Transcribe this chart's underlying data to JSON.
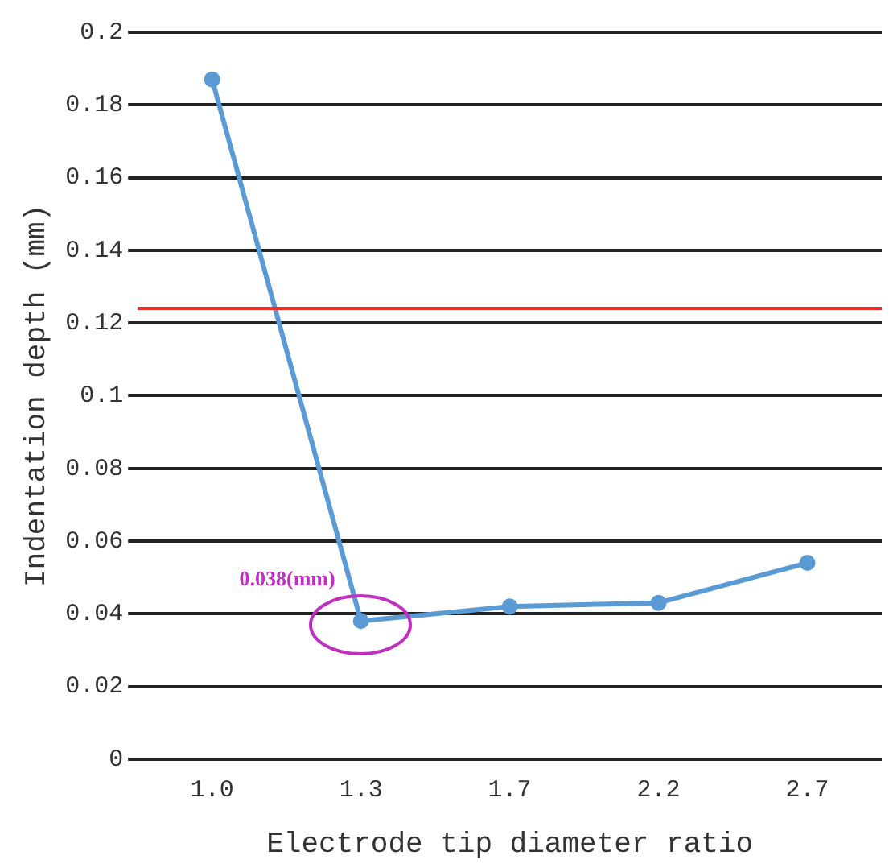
{
  "chart_data": {
    "type": "line",
    "xlabel": "Electrode tip diameter ratio",
    "ylabel": "Indentation depth (mm)",
    "categories": [
      "1.0",
      "1.3",
      "1.7",
      "2.2",
      "2.7"
    ],
    "series": [
      {
        "color": "#5b9bd5",
        "values": [
          0.187,
          0.038,
          0.042,
          0.043,
          0.054
        ]
      }
    ],
    "ylim": [
      0,
      0.2
    ],
    "yticks": [
      0,
      0.02,
      0.04,
      0.06,
      0.08,
      0.1,
      0.12,
      0.14,
      0.16,
      0.18,
      0.2
    ],
    "grid": "y",
    "marker": "circle",
    "line_style": "solid",
    "legend": false,
    "ref_lines": [
      {
        "axis": "y",
        "value": 0.124,
        "color": "#e8312f"
      }
    ],
    "annotations": [
      {
        "text": "0.038(mm)",
        "x": "1.3",
        "y": 0.038
      }
    ]
  }
}
